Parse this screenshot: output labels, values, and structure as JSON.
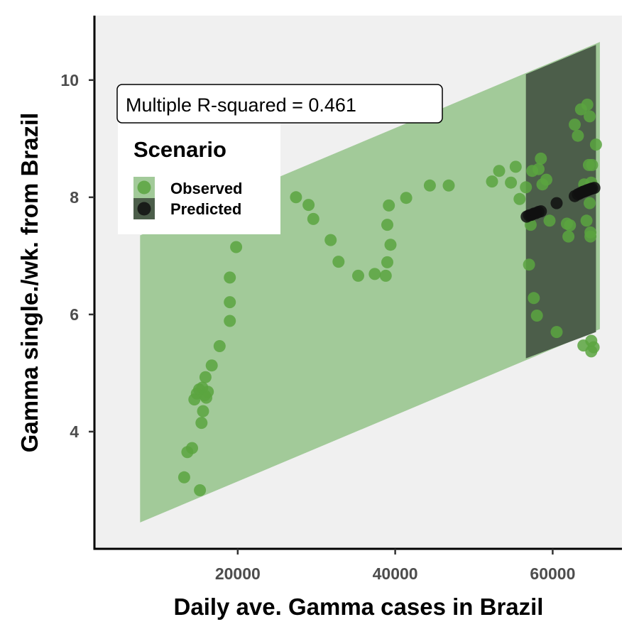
{
  "chart_data": {
    "type": "scatter",
    "xlabel": "Daily ave. Gamma cases in Brazil",
    "ylabel": "Gamma single./wk. from Brazil",
    "xlim": [
      1800,
      68800
    ],
    "ylim": [
      2.0,
      11.1
    ],
    "x_ticks": [
      20000,
      40000,
      60000
    ],
    "x_tick_labels": [
      "20000",
      "40000",
      "60000"
    ],
    "y_ticks": [
      4,
      6,
      8,
      10
    ],
    "y_tick_labels": [
      "4",
      "6",
      "8",
      "10"
    ],
    "grid": false,
    "annotation": "Multiple R-squared = 0.461",
    "legend": {
      "title": "Scenario",
      "position": "top-left",
      "entries": [
        {
          "label": "Observed",
          "color": "#5aa43f"
        },
        {
          "label": "Predicted",
          "color": "#111111"
        }
      ]
    },
    "colors": {
      "panel_background": "#f0f0f0",
      "observed_band": "#a2ca99",
      "predicted_band": "#4c5e4a",
      "observed_point": "#5aa43f",
      "predicted_point": "#111111"
    },
    "bands": {
      "observed": {
        "x": [
          7600,
          66000
        ],
        "lower": [
          2.45,
          5.75
        ],
        "upper": [
          7.35,
          10.65
        ]
      },
      "predicted": {
        "x": [
          56600,
          65500
        ],
        "lower": [
          5.25,
          5.7
        ],
        "upper": [
          10.1,
          10.6
        ]
      }
    },
    "series": [
      {
        "name": "Observed",
        "points": [
          [
            13200,
            3.22
          ],
          [
            13600,
            3.65
          ],
          [
            14200,
            3.72
          ],
          [
            15200,
            3.0
          ],
          [
            15400,
            4.15
          ],
          [
            15600,
            4.35
          ],
          [
            14500,
            4.55
          ],
          [
            14800,
            4.65
          ],
          [
            15100,
            4.72
          ],
          [
            15500,
            4.75
          ],
          [
            15800,
            4.62
          ],
          [
            16000,
            4.58
          ],
          [
            16200,
            4.68
          ],
          [
            15900,
            4.93
          ],
          [
            16700,
            5.13
          ],
          [
            17700,
            5.46
          ],
          [
            19000,
            5.89
          ],
          [
            19000,
            6.21
          ],
          [
            19000,
            6.63
          ],
          [
            19800,
            7.15
          ],
          [
            27400,
            8.0
          ],
          [
            29000,
            7.87
          ],
          [
            29600,
            7.63
          ],
          [
            31800,
            7.27
          ],
          [
            32800,
            6.9
          ],
          [
            35300,
            6.66
          ],
          [
            37400,
            6.69
          ],
          [
            38800,
            6.66
          ],
          [
            39000,
            6.89
          ],
          [
            39400,
            7.19
          ],
          [
            39000,
            7.53
          ],
          [
            39200,
            7.86
          ],
          [
            41400,
            7.99
          ],
          [
            44400,
            8.2
          ],
          [
            46800,
            8.2
          ],
          [
            52300,
            8.27
          ],
          [
            53200,
            8.45
          ],
          [
            54700,
            8.25
          ],
          [
            55300,
            8.52
          ],
          [
            55800,
            7.97
          ],
          [
            56600,
            8.17
          ],
          [
            57200,
            7.53
          ],
          [
            57400,
            8.45
          ],
          [
            58200,
            8.48
          ],
          [
            58500,
            8.66
          ],
          [
            58700,
            8.22
          ],
          [
            59200,
            8.3
          ],
          [
            59600,
            7.6
          ],
          [
            57000,
            6.85
          ],
          [
            57600,
            6.28
          ],
          [
            58000,
            5.98
          ],
          [
            60500,
            5.7
          ],
          [
            61800,
            7.55
          ],
          [
            62000,
            7.33
          ],
          [
            62200,
            7.52
          ],
          [
            62800,
            9.24
          ],
          [
            63200,
            9.05
          ],
          [
            63600,
            9.5
          ],
          [
            64400,
            9.58
          ],
          [
            64700,
            9.38
          ],
          [
            65500,
            8.9
          ],
          [
            64600,
            8.55
          ],
          [
            65000,
            8.55
          ],
          [
            64900,
            8.25
          ],
          [
            64700,
            7.9
          ],
          [
            64300,
            7.6
          ],
          [
            64800,
            7.4
          ],
          [
            64800,
            7.33
          ],
          [
            63900,
            5.47
          ],
          [
            64900,
            5.55
          ],
          [
            64900,
            5.37
          ],
          [
            65200,
            5.44
          ],
          [
            64000,
            8.22
          ]
        ]
      },
      {
        "name": "Predicted",
        "points": [
          [
            56700,
            7.67
          ],
          [
            57000,
            7.69
          ],
          [
            57300,
            7.7
          ],
          [
            57600,
            7.72
          ],
          [
            57900,
            7.73
          ],
          [
            58200,
            7.75
          ],
          [
            58500,
            7.76
          ],
          [
            60500,
            7.9
          ],
          [
            62800,
            8.02
          ],
          [
            63200,
            8.05
          ],
          [
            63500,
            8.07
          ],
          [
            63800,
            8.09
          ],
          [
            64000,
            8.1
          ],
          [
            64200,
            8.11
          ],
          [
            64400,
            8.12
          ],
          [
            64600,
            8.13
          ],
          [
            64800,
            8.14
          ],
          [
            65000,
            8.15
          ],
          [
            65300,
            8.16
          ]
        ]
      }
    ]
  }
}
